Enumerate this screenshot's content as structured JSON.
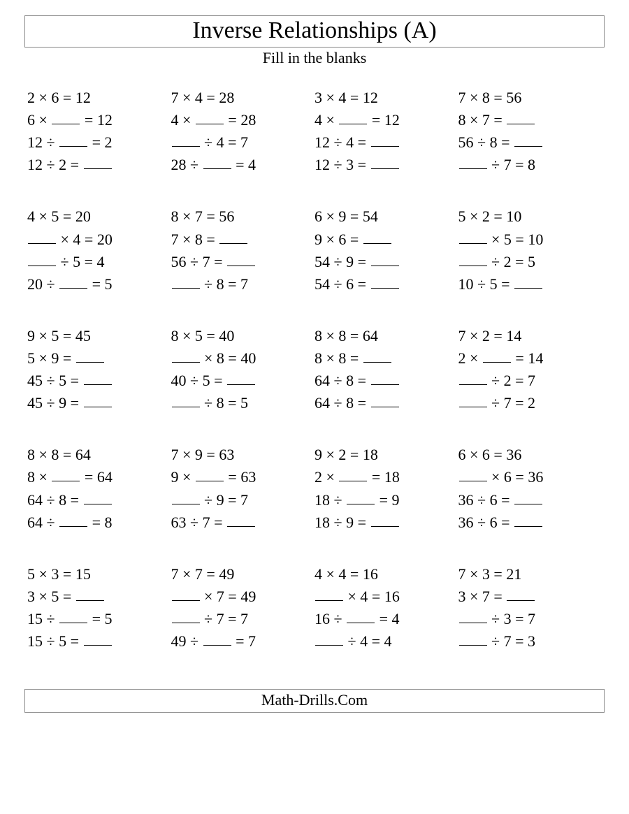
{
  "title": "Inverse Relationships (A)",
  "subtitle": "Fill in the blanks",
  "footer": "Math-Drills.Com",
  "mul": "×",
  "div": "÷",
  "eq": "=",
  "groups": [
    [
      {
        "p": [
          "2",
          "×",
          "6",
          "=",
          "12"
        ]
      },
      {
        "p": [
          "6",
          "×",
          "_",
          "=",
          "12"
        ]
      },
      {
        "p": [
          "12",
          "÷",
          "_",
          "=",
          "2"
        ]
      },
      {
        "p": [
          "12",
          "÷",
          "2",
          "=",
          "_"
        ]
      }
    ],
    [
      {
        "p": [
          "7",
          "×",
          "4",
          "=",
          "28"
        ]
      },
      {
        "p": [
          "4",
          "×",
          "_",
          "=",
          "28"
        ]
      },
      {
        "p": [
          "_",
          "÷",
          "4",
          "=",
          "7"
        ]
      },
      {
        "p": [
          "28",
          "÷",
          "_",
          "=",
          "4"
        ]
      }
    ],
    [
      {
        "p": [
          "3",
          "×",
          "4",
          "=",
          "12"
        ]
      },
      {
        "p": [
          "4",
          "×",
          "_",
          "=",
          "12"
        ]
      },
      {
        "p": [
          "12",
          "÷",
          "4",
          "=",
          "_"
        ]
      },
      {
        "p": [
          "12",
          "÷",
          "3",
          "=",
          "_"
        ]
      }
    ],
    [
      {
        "p": [
          "7",
          "×",
          "8",
          "=",
          "56"
        ]
      },
      {
        "p": [
          "8",
          "×",
          "7",
          "=",
          "_"
        ]
      },
      {
        "p": [
          "56",
          "÷",
          "8",
          "=",
          "_"
        ]
      },
      {
        "p": [
          "_",
          "÷",
          "7",
          "=",
          "8"
        ]
      }
    ],
    [
      {
        "p": [
          "4",
          "×",
          "5",
          "=",
          "20"
        ]
      },
      {
        "p": [
          "_",
          "×",
          "4",
          "=",
          "20"
        ]
      },
      {
        "p": [
          "_",
          "÷",
          "5",
          "=",
          "4"
        ]
      },
      {
        "p": [
          "20",
          "÷",
          "_",
          "=",
          "5"
        ]
      }
    ],
    [
      {
        "p": [
          "8",
          "×",
          "7",
          "=",
          "56"
        ]
      },
      {
        "p": [
          "7",
          "×",
          "8",
          "=",
          "_"
        ]
      },
      {
        "p": [
          "56",
          "÷",
          "7",
          "=",
          "_"
        ]
      },
      {
        "p": [
          "_",
          "÷",
          "8",
          "=",
          "7"
        ]
      }
    ],
    [
      {
        "p": [
          "6",
          "×",
          "9",
          "=",
          "54"
        ]
      },
      {
        "p": [
          "9",
          "×",
          "6",
          "=",
          "_"
        ]
      },
      {
        "p": [
          "54",
          "÷",
          "9",
          "=",
          "_"
        ]
      },
      {
        "p": [
          "54",
          "÷",
          "6",
          "=",
          "_"
        ]
      }
    ],
    [
      {
        "p": [
          "5",
          "×",
          "2",
          "=",
          "10"
        ]
      },
      {
        "p": [
          "_",
          "×",
          "5",
          "=",
          "10"
        ]
      },
      {
        "p": [
          "_",
          "÷",
          "2",
          "=",
          "5"
        ]
      },
      {
        "p": [
          "10",
          "÷",
          "5",
          "=",
          "_"
        ]
      }
    ],
    [
      {
        "p": [
          "9",
          "×",
          "5",
          "=",
          "45"
        ]
      },
      {
        "p": [
          "5",
          "×",
          "9",
          "=",
          "_"
        ]
      },
      {
        "p": [
          "45",
          "÷",
          "5",
          "=",
          "_"
        ]
      },
      {
        "p": [
          "45",
          "÷",
          "9",
          "=",
          "_"
        ]
      }
    ],
    [
      {
        "p": [
          "8",
          "×",
          "5",
          "=",
          "40"
        ]
      },
      {
        "p": [
          "_",
          "×",
          "8",
          "=",
          "40"
        ]
      },
      {
        "p": [
          "40",
          "÷",
          "5",
          "=",
          "_"
        ]
      },
      {
        "p": [
          "_",
          "÷",
          "8",
          "=",
          "5"
        ]
      }
    ],
    [
      {
        "p": [
          "8",
          "×",
          "8",
          "=",
          "64"
        ]
      },
      {
        "p": [
          "8",
          "×",
          "8",
          "=",
          "_"
        ]
      },
      {
        "p": [
          "64",
          "÷",
          "8",
          "=",
          "_"
        ]
      },
      {
        "p": [
          "64",
          "÷",
          "8",
          "=",
          "_"
        ]
      }
    ],
    [
      {
        "p": [
          "7",
          "×",
          "2",
          "=",
          "14"
        ]
      },
      {
        "p": [
          "2",
          "×",
          "_",
          "=",
          "14"
        ]
      },
      {
        "p": [
          "_",
          "÷",
          "2",
          "=",
          "7"
        ]
      },
      {
        "p": [
          "_",
          "÷",
          "7",
          "=",
          "2"
        ]
      }
    ],
    [
      {
        "p": [
          "8",
          "×",
          "8",
          "=",
          "64"
        ]
      },
      {
        "p": [
          "8",
          "×",
          "_",
          "=",
          "64"
        ]
      },
      {
        "p": [
          "64",
          "÷",
          "8",
          "=",
          "_"
        ]
      },
      {
        "p": [
          "64",
          "÷",
          "_",
          "=",
          "8"
        ]
      }
    ],
    [
      {
        "p": [
          "7",
          "×",
          "9",
          "=",
          "63"
        ]
      },
      {
        "p": [
          "9",
          "×",
          "_",
          "=",
          "63"
        ]
      },
      {
        "p": [
          "_",
          "÷",
          "9",
          "=",
          "7"
        ]
      },
      {
        "p": [
          "63",
          "÷",
          "7",
          "=",
          "_"
        ]
      }
    ],
    [
      {
        "p": [
          "9",
          "×",
          "2",
          "=",
          "18"
        ]
      },
      {
        "p": [
          "2",
          "×",
          "_",
          "=",
          "18"
        ]
      },
      {
        "p": [
          "18",
          "÷",
          "_",
          "=",
          "9"
        ]
      },
      {
        "p": [
          "18",
          "÷",
          "9",
          "=",
          "_"
        ]
      }
    ],
    [
      {
        "p": [
          "6",
          "×",
          "6",
          "=",
          "36"
        ]
      },
      {
        "p": [
          "_",
          "×",
          "6",
          "=",
          "36"
        ]
      },
      {
        "p": [
          "36",
          "÷",
          "6",
          "=",
          "_"
        ]
      },
      {
        "p": [
          "36",
          "÷",
          "6",
          "=",
          "_"
        ]
      }
    ],
    [
      {
        "p": [
          "5",
          "×",
          "3",
          "=",
          "15"
        ]
      },
      {
        "p": [
          "3",
          "×",
          "5",
          "=",
          "_"
        ]
      },
      {
        "p": [
          "15",
          "÷",
          "_",
          "=",
          "5"
        ]
      },
      {
        "p": [
          "15",
          "÷",
          "5",
          "=",
          "_"
        ]
      }
    ],
    [
      {
        "p": [
          "7",
          "×",
          "7",
          "=",
          "49"
        ]
      },
      {
        "p": [
          "_",
          "×",
          "7",
          "=",
          "49"
        ]
      },
      {
        "p": [
          "_",
          "÷",
          "7",
          "=",
          "7"
        ]
      },
      {
        "p": [
          "49",
          "÷",
          "_",
          "=",
          "7"
        ]
      }
    ],
    [
      {
        "p": [
          "4",
          "×",
          "4",
          "=",
          "16"
        ]
      },
      {
        "p": [
          "_",
          "×",
          "4",
          "=",
          "16"
        ]
      },
      {
        "p": [
          "16",
          "÷",
          "_",
          "=",
          "4"
        ]
      },
      {
        "p": [
          "_",
          "÷",
          "4",
          "=",
          "4"
        ]
      }
    ],
    [
      {
        "p": [
          "7",
          "×",
          "3",
          "=",
          "21"
        ]
      },
      {
        "p": [
          "3",
          "×",
          "7",
          "=",
          "_"
        ]
      },
      {
        "p": [
          "_",
          "÷",
          "3",
          "=",
          "7"
        ]
      },
      {
        "p": [
          "_",
          "÷",
          "7",
          "=",
          "3"
        ]
      }
    ]
  ]
}
